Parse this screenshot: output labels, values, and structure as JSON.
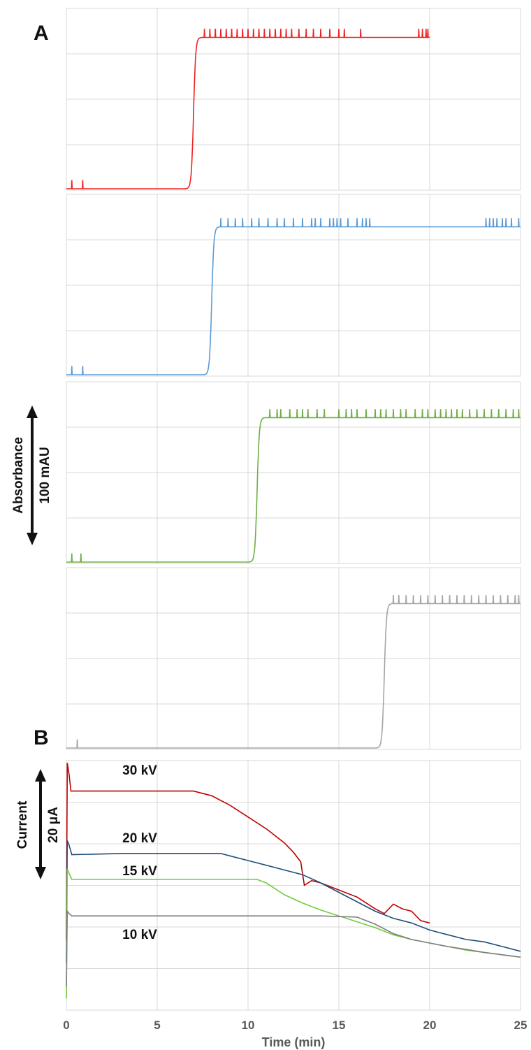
{
  "panels": {
    "a_label": "A",
    "b_label": "B"
  },
  "absorbance_scale": {
    "label_line1": "Absorbance",
    "label_line2": "100 mAU"
  },
  "current_scale": {
    "label_line1": "Current",
    "label_line2": "20 μA"
  },
  "chart_data": [
    {
      "type": "line",
      "panel": "A",
      "xlabel": "",
      "ylabel": "",
      "xlim": [
        0,
        25
      ],
      "grid": true,
      "x_gridlines": [
        0,
        5,
        10,
        15,
        20,
        25
      ],
      "traces": [
        {
          "color": "#ee2222",
          "x_end": 20,
          "step_time": 7.0,
          "baseline": 0.0,
          "plateau": 0.88,
          "spikes": [
            0.3,
            0.9,
            7.6,
            7.9,
            8.2,
            8.5,
            8.8,
            9.1,
            9.4,
            9.7,
            10.0,
            10.3,
            10.6,
            10.9,
            11.2,
            11.5,
            11.8,
            12.1,
            12.4,
            12.8,
            13.2,
            13.6,
            14.0,
            14.5,
            15.0,
            15.3,
            16.2,
            19.4,
            19.6,
            19.8,
            19.9
          ]
        },
        {
          "color": "#5b9bd5",
          "x_end": 25,
          "step_time": 8.0,
          "baseline": 0.0,
          "plateau": 0.86,
          "spikes": [
            0.3,
            0.9,
            8.5,
            8.9,
            9.3,
            9.7,
            10.2,
            10.6,
            11.1,
            11.6,
            12.0,
            12.5,
            13.0,
            13.5,
            13.7,
            14.0,
            14.5,
            14.7,
            14.9,
            15.1,
            15.5,
            16.0,
            16.3,
            16.5,
            16.7,
            23.1,
            23.3,
            23.5,
            23.7,
            24.0,
            24.2,
            24.5,
            24.9
          ]
        },
        {
          "color": "#70ad47",
          "x_end": 25,
          "step_time": 10.5,
          "baseline": 0.0,
          "plateau": 0.84,
          "spikes": [
            0.3,
            0.8,
            11.2,
            11.6,
            11.8,
            12.3,
            12.7,
            13.0,
            13.3,
            13.8,
            14.2,
            15.0,
            15.4,
            15.7,
            16.0,
            16.5,
            17.0,
            17.3,
            17.6,
            18.0,
            18.4,
            18.7,
            19.2,
            19.6,
            19.9,
            20.3,
            20.6,
            20.9,
            21.2,
            21.5,
            21.8,
            22.2,
            22.6,
            23.0,
            23.4,
            23.8,
            24.2,
            24.6,
            24.9
          ]
        },
        {
          "color": "#a5a5a5",
          "x_end": 25,
          "step_time": 17.5,
          "baseline": 0.0,
          "plateau": 0.84,
          "spikes": [
            0.6,
            18.0,
            18.3,
            18.7,
            19.1,
            19.5,
            19.9,
            20.3,
            20.7,
            21.1,
            21.5,
            21.9,
            22.3,
            22.7,
            23.1,
            23.5,
            23.9,
            24.3,
            24.7,
            24.9
          ]
        }
      ]
    },
    {
      "type": "line",
      "panel": "B",
      "xlabel": "Time (min)",
      "ylabel": "",
      "xlim": [
        0,
        25
      ],
      "x_ticks": [
        "0",
        "5",
        "10",
        "15",
        "20",
        "25"
      ],
      "grid": true,
      "y_gridlines": 6,
      "series": [
        {
          "name": "30 kV",
          "color": "#c00000",
          "x": [
            0,
            0.05,
            0.15,
            0.25,
            2,
            5,
            7,
            8,
            9,
            10,
            11,
            12,
            12.5,
            12.9,
            13.1,
            13.5,
            14,
            15,
            16,
            17,
            17.5,
            18,
            18.5,
            19,
            19.5,
            20
          ],
          "y": [
            0.3,
            1.05,
            1.0,
            0.93,
            0.93,
            0.93,
            0.93,
            0.91,
            0.87,
            0.82,
            0.77,
            0.71,
            0.67,
            0.63,
            0.53,
            0.55,
            0.54,
            0.51,
            0.48,
            0.43,
            0.41,
            0.45,
            0.43,
            0.42,
            0.38,
            0.37
          ]
        },
        {
          "name": "20 kV",
          "color": "#1f4e79",
          "x": [
            0,
            0.05,
            0.15,
            0.3,
            3,
            6,
            8,
            8.5,
            9,
            10,
            11,
            12,
            13,
            14,
            15,
            16,
            17,
            18,
            19,
            20,
            21,
            22,
            23,
            24,
            25
          ],
          "y": [
            0.2,
            0.72,
            0.7,
            0.66,
            0.665,
            0.665,
            0.665,
            0.665,
            0.655,
            0.635,
            0.615,
            0.595,
            0.575,
            0.54,
            0.5,
            0.46,
            0.42,
            0.39,
            0.37,
            0.34,
            0.32,
            0.3,
            0.29,
            0.27,
            0.25
          ]
        },
        {
          "name": "15 kV",
          "color": "#70cc40",
          "x": [
            0,
            0.05,
            0.15,
            0.3,
            3,
            6,
            9,
            10.5,
            11,
            11.5,
            12,
            13,
            14,
            15,
            16,
            17,
            18,
            19,
            20,
            21,
            22,
            23,
            24,
            25
          ],
          "y": [
            0.05,
            0.6,
            0.58,
            0.555,
            0.555,
            0.555,
            0.555,
            0.555,
            0.54,
            0.515,
            0.49,
            0.455,
            0.425,
            0.4,
            0.375,
            0.35,
            0.32,
            0.3,
            0.285,
            0.27,
            0.255,
            0.245,
            0.235,
            0.225
          ]
        },
        {
          "name": "10 kV",
          "color": "#7f7f7f",
          "x": [
            0,
            0.05,
            0.15,
            0.3,
            3,
            6,
            10,
            14,
            16,
            17,
            18,
            19,
            20,
            21,
            22,
            23,
            24,
            25
          ],
          "y": [
            0.1,
            0.42,
            0.41,
            0.4,
            0.4,
            0.4,
            0.4,
            0.4,
            0.395,
            0.365,
            0.325,
            0.3,
            0.285,
            0.27,
            0.258,
            0.245,
            0.235,
            0.225
          ]
        }
      ]
    }
  ]
}
